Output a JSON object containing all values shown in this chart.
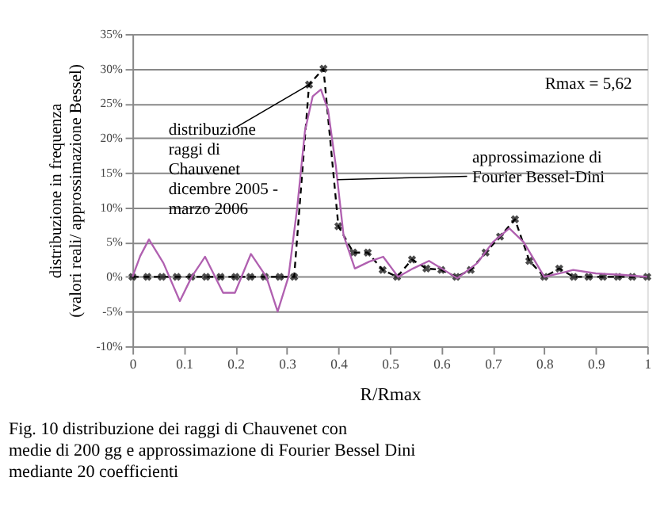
{
  "chart_data": {
    "type": "line",
    "ylabel": "distribuzione in frequenza\n(valori reali/ approssimazione Bessel)",
    "xlabel": "R/Rmax",
    "xlim": [
      0,
      1
    ],
    "xticks": [
      0,
      0.1,
      0.2,
      0.3,
      0.4,
      0.5,
      0.6,
      0.7,
      0.8,
      0.9,
      1
    ],
    "ylim": [
      -10,
      35
    ],
    "yticks": [
      {
        "value": -10,
        "label": "-10%"
      },
      {
        "value": -5,
        "label": "-5%"
      },
      {
        "value": 0,
        "label": "0%"
      },
      {
        "value": 5,
        "label": "5%"
      },
      {
        "value": 10,
        "label": "10%"
      },
      {
        "value": 15,
        "label": "15%"
      },
      {
        "value": 20,
        "label": "20%"
      },
      {
        "value": 25,
        "label": "25%"
      },
      {
        "value": 30,
        "label": "30%"
      },
      {
        "value": 35,
        "label": "35%"
      }
    ],
    "grid": "y",
    "series": [
      {
        "type": "line",
        "color": "#000000",
        "line_style": "dashed",
        "marker": "cross",
        "x": [
          0,
          0.029,
          0.057,
          0.086,
          0.114,
          0.143,
          0.171,
          0.2,
          0.229,
          0.257,
          0.286,
          0.314,
          0.343,
          0.371,
          0.4,
          0.429,
          0.457,
          0.486,
          0.514,
          0.543,
          0.571,
          0.6,
          0.629,
          0.657,
          0.686,
          0.714,
          0.743,
          0.771,
          0.8,
          0.829,
          0.857,
          0.886,
          0.914,
          0.943,
          0.971,
          1
        ],
        "values": [
          0,
          0,
          0,
          0,
          0,
          0,
          0,
          0,
          0,
          0,
          0,
          0,
          27.7,
          30,
          7.3,
          3.5,
          3.5,
          1,
          0,
          2.5,
          1.2,
          1,
          0,
          1,
          3.5,
          5.8,
          8.3,
          2.3,
          0,
          1.2,
          0,
          0,
          0,
          0,
          0,
          0
        ]
      },
      {
        "type": "line",
        "color": "#b060b0",
        "line_style": "solid",
        "marker": "none",
        "x": [
          0,
          0.015,
          0.032,
          0.06,
          0.092,
          0.115,
          0.141,
          0.176,
          0.199,
          0.23,
          0.26,
          0.282,
          0.303,
          0.32,
          0.335,
          0.35,
          0.366,
          0.38,
          0.395,
          0.41,
          0.432,
          0.46,
          0.487,
          0.516,
          0.545,
          0.576,
          0.605,
          0.631,
          0.67,
          0.7,
          0.732,
          0.76,
          0.8,
          0.83,
          0.856,
          0.9,
          0.95,
          1
        ],
        "values": [
          0,
          3,
          5.4,
          2,
          -3.5,
          0,
          2.9,
          -2.3,
          -2.3,
          3.3,
          0,
          -5,
          0,
          10,
          21,
          26,
          27,
          24,
          16,
          6,
          1.2,
          2.2,
          2.9,
          0,
          1.2,
          2.3,
          1,
          -0.2,
          2,
          5,
          7,
          5,
          0,
          0.5,
          1,
          0.5,
          0.3,
          0
        ]
      }
    ],
    "annotations": [
      {
        "text": "distribuzione\nraggi di\nChauvenet\ndicembre 2005 -\nmarzo  2006",
        "x": 0.343,
        "y": 27.7
      },
      {
        "text": "approssimazione di\nFourier Bessel-Dini",
        "x": 0.398,
        "y": 14
      },
      "Rmax = 5,62",
      "Fig. 10  distribuzione dei raggi di Chauvenet con\nmedie di 200 gg e approssimazione di Fourier Bessel Dini\nmediante 20 coefficienti"
    ]
  }
}
